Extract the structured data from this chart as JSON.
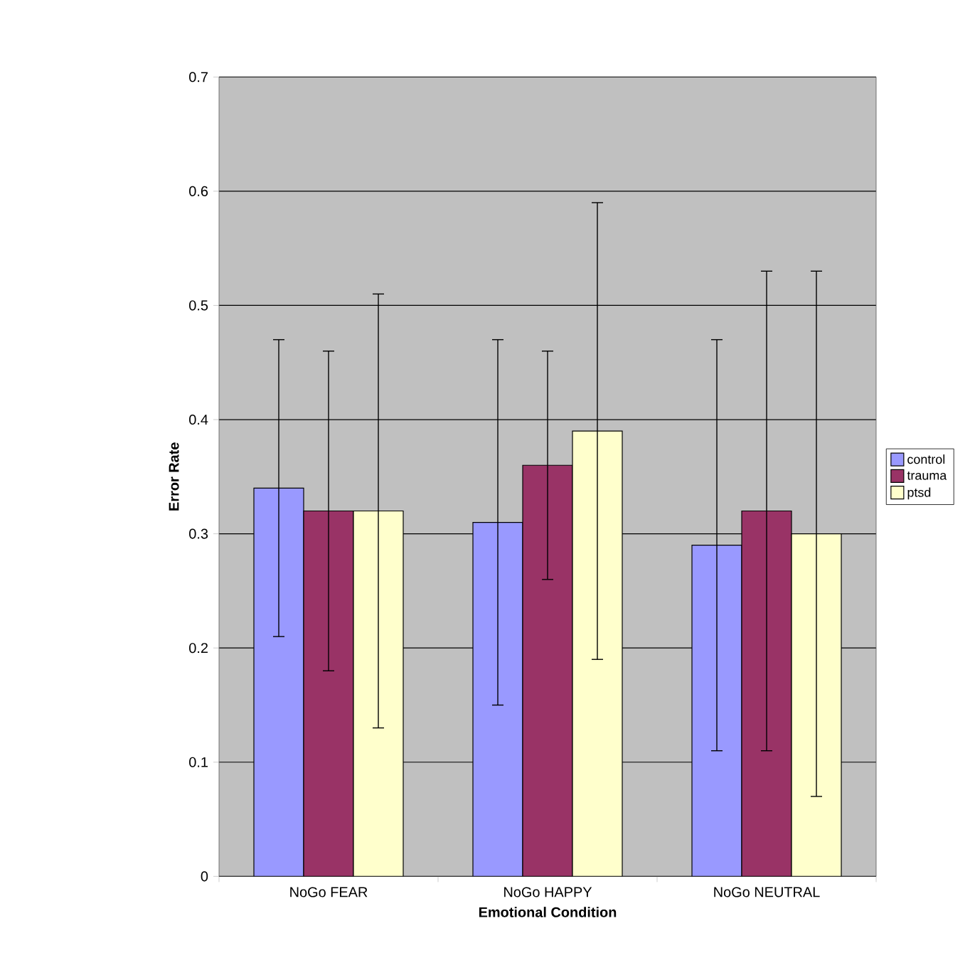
{
  "chart_data": {
    "type": "bar",
    "xlabel": "Emotional Condition",
    "ylabel": "Error Rate",
    "categories": [
      "NoGo FEAR",
      "NoGo HAPPY",
      "NoGo NEUTRAL"
    ],
    "series": [
      {
        "name": "control",
        "color": "#9999ff",
        "values": [
          0.34,
          0.31,
          0.29
        ],
        "errors": [
          0.13,
          0.16,
          0.18
        ]
      },
      {
        "name": "trauma",
        "color": "#993366",
        "values": [
          0.32,
          0.36,
          0.32
        ],
        "errors": [
          0.14,
          0.1,
          0.21
        ]
      },
      {
        "name": "ptsd",
        "color": "#ffffcc",
        "values": [
          0.32,
          0.39,
          0.3
        ],
        "errors": [
          0.19,
          0.2,
          0.23
        ]
      }
    ],
    "ylim": [
      0,
      0.7
    ],
    "yticks": [
      0,
      0.1,
      0.2,
      0.3,
      0.4,
      0.5,
      0.6,
      0.7
    ],
    "grid": "y",
    "legend": "right"
  }
}
